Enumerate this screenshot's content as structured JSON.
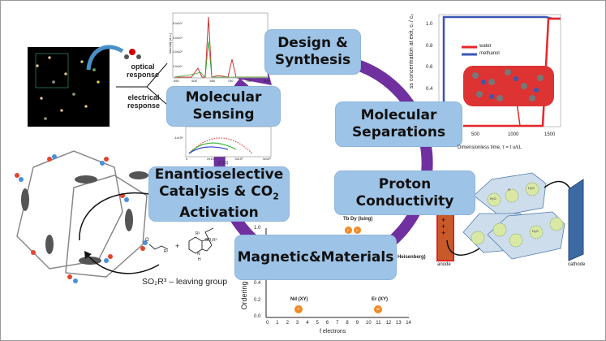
{
  "boxes": {
    "design": [
      "Design &",
      "Synthesis"
    ],
    "sensing": [
      "Molecular",
      "Sensing"
    ],
    "separations": [
      "Molecular",
      "Separations"
    ],
    "catalysis": [
      "Enantioselective",
      "Catalysis & CO",
      "2",
      "Activation"
    ],
    "proton": [
      "Proton",
      "Conductivity"
    ],
    "magnetic": "Magnetic&Materials"
  },
  "sensing_panel": {
    "optical": [
      "optical",
      "response"
    ],
    "electrical": [
      "electrical",
      "response"
    ],
    "spectrum_y_ticks": [
      "8.0x10⁵",
      "6.0x10⁵",
      "4.0x10⁵",
      "2.0x10⁵",
      "0.0"
    ],
    "spectrum_x_ticks": [
      "550",
      "600",
      "650",
      "700",
      "750",
      "800"
    ],
    "spectrum_ylabel": "Intensity (a.u.)",
    "nyquist_x_ticks": [
      "0",
      "2x10⁵",
      "3x10⁵",
      "4x10⁵"
    ],
    "nyquist_y_tick": "-1x10⁵",
    "nyquist_xlabel": "Z′ (Ω)"
  },
  "separation_chart": {
    "ylabel": "ss concentration at exit, cᵢ / c₀",
    "xlabel": "Dimensionless time, τ = t u/εL",
    "y_ticks": [
      "1.0",
      "0.8",
      "0.6",
      "0.4"
    ],
    "x_ticks": [
      "500",
      "1000",
      "1500"
    ],
    "legend": [
      {
        "name": "water",
        "color": "#e8262b"
      },
      {
        "name": "methanol",
        "color": "#3a57b4"
      }
    ]
  },
  "catalysis_panel": {
    "leaving_group": "SO₂R³ – leaving group",
    "r1": "R¹",
    "r2": "R²",
    "so2r3": "SO₂R³",
    "nh": "N",
    "h": "H",
    "plus": "+",
    "o": "O"
  },
  "magnetic_chart": {
    "ylabel": "Ordering",
    "xlabel": "f electrons",
    "y_ticks": [
      "1.0",
      "0.4",
      "0.2",
      "0.0"
    ],
    "x_ticks": [
      "0",
      "1",
      "2",
      "3",
      "4",
      "5",
      "6",
      "7",
      "8",
      "9",
      "10",
      "11",
      "12",
      "13",
      "14"
    ],
    "points": [
      {
        "label": "Nd (XY)",
        "x": 3,
        "y": 0.05,
        "type": "F"
      },
      {
        "label": "Er (XY)",
        "x": 11,
        "y": 0.05,
        "type": "AF"
      }
    ],
    "ising": "Tb Dy (Ising)",
    "heisenberg": "Heisenberg)",
    "point_color": "#f08a24"
  },
  "proton_panel": {
    "anode": "anode",
    "cathode": "cathode",
    "water": "H₂O",
    "h": "H"
  },
  "colors": {
    "ring": "#7030a0",
    "box": "#9dc3e6"
  }
}
